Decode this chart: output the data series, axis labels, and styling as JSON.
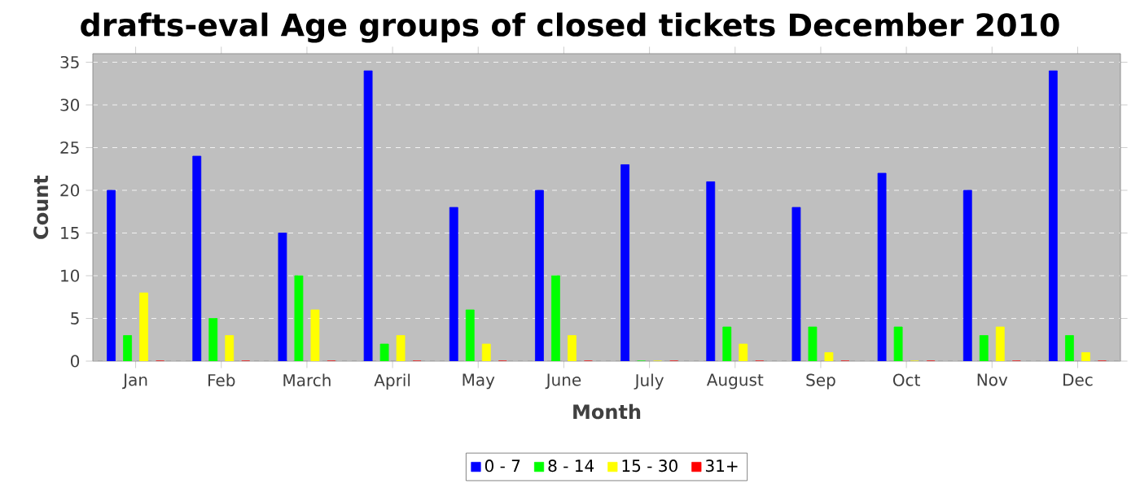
{
  "chart_data": {
    "type": "bar",
    "title": "drafts-eval Age groups of closed tickets December 2010",
    "xlabel": "Month",
    "ylabel": "Count",
    "categories": [
      "Jan",
      "Feb",
      "March",
      "April",
      "May",
      "June",
      "July",
      "August",
      "Sep",
      "Oct",
      "Nov",
      "Dec"
    ],
    "series": [
      {
        "name": "0 - 7",
        "color": "#0000ff",
        "values": [
          20,
          24,
          15,
          34,
          18,
          20,
          23,
          21,
          18,
          22,
          20,
          34
        ]
      },
      {
        "name": "8 - 14",
        "color": "#00ff00",
        "values": [
          3,
          5,
          10,
          2,
          6,
          10,
          0,
          4,
          4,
          4,
          3,
          3
        ]
      },
      {
        "name": "15 - 30",
        "color": "#ffff00",
        "values": [
          8,
          3,
          6,
          3,
          2,
          3,
          0,
          2,
          1,
          0,
          4,
          1
        ]
      },
      {
        "name": "31+",
        "color": "#ff0000",
        "values": [
          0,
          0,
          0,
          0,
          0,
          0,
          0,
          0,
          0,
          0,
          0,
          0
        ]
      }
    ],
    "ylim": [
      0,
      36
    ],
    "yticks": [
      0,
      5,
      10,
      15,
      20,
      25,
      30,
      35
    ],
    "grid": "y",
    "legend": "bottom"
  }
}
